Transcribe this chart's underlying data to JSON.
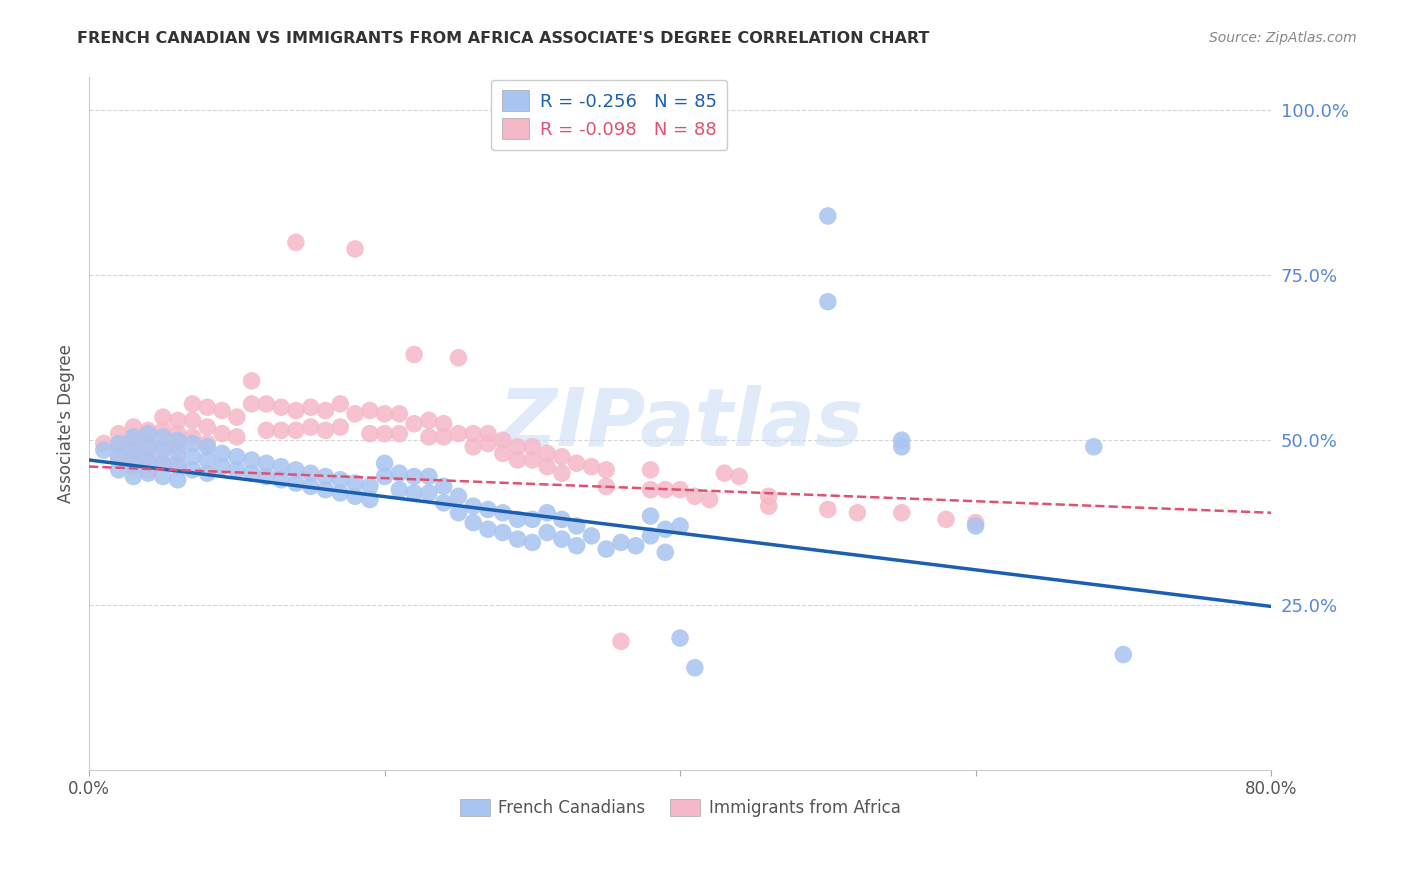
{
  "title": "FRENCH CANADIAN VS IMMIGRANTS FROM AFRICA ASSOCIATE'S DEGREE CORRELATION CHART",
  "source": "Source: ZipAtlas.com",
  "ylabel": "Associate's Degree",
  "right_yticks": [
    "100.0%",
    "75.0%",
    "50.0%",
    "25.0%"
  ],
  "right_ytick_vals": [
    1.0,
    0.75,
    0.5,
    0.25
  ],
  "watermark": "ZIPatlas",
  "legend_blue_R": "-0.256",
  "legend_blue_N": "85",
  "legend_pink_R": "-0.098",
  "legend_pink_N": "88",
  "legend_blue_label": "French Canadians",
  "legend_pink_label": "Immigrants from Africa",
  "blue_color": "#a8c4f0",
  "pink_color": "#f5b8c8",
  "line_blue": "#1a5fb0",
  "line_pink": "#e05070",
  "blue_scatter": [
    [
      0.01,
      0.485
    ],
    [
      0.02,
      0.495
    ],
    [
      0.02,
      0.475
    ],
    [
      0.02,
      0.455
    ],
    [
      0.03,
      0.505
    ],
    [
      0.03,
      0.485
    ],
    [
      0.03,
      0.465
    ],
    [
      0.03,
      0.445
    ],
    [
      0.04,
      0.51
    ],
    [
      0.04,
      0.49
    ],
    [
      0.04,
      0.47
    ],
    [
      0.04,
      0.45
    ],
    [
      0.05,
      0.505
    ],
    [
      0.05,
      0.485
    ],
    [
      0.05,
      0.465
    ],
    [
      0.05,
      0.445
    ],
    [
      0.06,
      0.5
    ],
    [
      0.06,
      0.48
    ],
    [
      0.06,
      0.46
    ],
    [
      0.06,
      0.44
    ],
    [
      0.07,
      0.495
    ],
    [
      0.07,
      0.475
    ],
    [
      0.07,
      0.455
    ],
    [
      0.08,
      0.49
    ],
    [
      0.08,
      0.47
    ],
    [
      0.08,
      0.45
    ],
    [
      0.09,
      0.48
    ],
    [
      0.09,
      0.46
    ],
    [
      0.1,
      0.475
    ],
    [
      0.1,
      0.455
    ],
    [
      0.11,
      0.47
    ],
    [
      0.11,
      0.45
    ],
    [
      0.12,
      0.465
    ],
    [
      0.12,
      0.445
    ],
    [
      0.13,
      0.46
    ],
    [
      0.13,
      0.44
    ],
    [
      0.14,
      0.455
    ],
    [
      0.14,
      0.435
    ],
    [
      0.15,
      0.45
    ],
    [
      0.15,
      0.43
    ],
    [
      0.16,
      0.445
    ],
    [
      0.16,
      0.425
    ],
    [
      0.17,
      0.44
    ],
    [
      0.17,
      0.42
    ],
    [
      0.18,
      0.435
    ],
    [
      0.18,
      0.415
    ],
    [
      0.19,
      0.43
    ],
    [
      0.19,
      0.41
    ],
    [
      0.2,
      0.465
    ],
    [
      0.2,
      0.445
    ],
    [
      0.21,
      0.45
    ],
    [
      0.21,
      0.425
    ],
    [
      0.22,
      0.445
    ],
    [
      0.22,
      0.42
    ],
    [
      0.23,
      0.445
    ],
    [
      0.23,
      0.42
    ],
    [
      0.24,
      0.43
    ],
    [
      0.24,
      0.405
    ],
    [
      0.25,
      0.415
    ],
    [
      0.25,
      0.39
    ],
    [
      0.26,
      0.4
    ],
    [
      0.26,
      0.375
    ],
    [
      0.27,
      0.395
    ],
    [
      0.27,
      0.365
    ],
    [
      0.28,
      0.39
    ],
    [
      0.28,
      0.36
    ],
    [
      0.29,
      0.38
    ],
    [
      0.29,
      0.35
    ],
    [
      0.3,
      0.38
    ],
    [
      0.3,
      0.345
    ],
    [
      0.31,
      0.39
    ],
    [
      0.31,
      0.36
    ],
    [
      0.32,
      0.38
    ],
    [
      0.32,
      0.35
    ],
    [
      0.33,
      0.37
    ],
    [
      0.33,
      0.34
    ],
    [
      0.34,
      0.355
    ],
    [
      0.35,
      0.335
    ],
    [
      0.36,
      0.345
    ],
    [
      0.37,
      0.34
    ],
    [
      0.38,
      0.385
    ],
    [
      0.38,
      0.355
    ],
    [
      0.39,
      0.365
    ],
    [
      0.39,
      0.33
    ],
    [
      0.4,
      0.37
    ],
    [
      0.4,
      0.2
    ],
    [
      0.41,
      0.155
    ],
    [
      0.5,
      0.84
    ],
    [
      0.5,
      0.71
    ],
    [
      0.55,
      0.5
    ],
    [
      0.55,
      0.49
    ],
    [
      0.6,
      0.37
    ],
    [
      0.68,
      0.49
    ],
    [
      0.7,
      0.175
    ]
  ],
  "pink_scatter": [
    [
      0.01,
      0.495
    ],
    [
      0.02,
      0.51
    ],
    [
      0.02,
      0.49
    ],
    [
      0.02,
      0.47
    ],
    [
      0.03,
      0.52
    ],
    [
      0.03,
      0.5
    ],
    [
      0.03,
      0.48
    ],
    [
      0.03,
      0.46
    ],
    [
      0.04,
      0.515
    ],
    [
      0.04,
      0.495
    ],
    [
      0.04,
      0.475
    ],
    [
      0.04,
      0.455
    ],
    [
      0.05,
      0.535
    ],
    [
      0.05,
      0.515
    ],
    [
      0.05,
      0.49
    ],
    [
      0.05,
      0.465
    ],
    [
      0.06,
      0.53
    ],
    [
      0.06,
      0.51
    ],
    [
      0.06,
      0.49
    ],
    [
      0.06,
      0.465
    ],
    [
      0.07,
      0.555
    ],
    [
      0.07,
      0.53
    ],
    [
      0.07,
      0.505
    ],
    [
      0.08,
      0.55
    ],
    [
      0.08,
      0.52
    ],
    [
      0.08,
      0.495
    ],
    [
      0.09,
      0.545
    ],
    [
      0.09,
      0.51
    ],
    [
      0.1,
      0.535
    ],
    [
      0.1,
      0.505
    ],
    [
      0.11,
      0.59
    ],
    [
      0.11,
      0.555
    ],
    [
      0.12,
      0.555
    ],
    [
      0.12,
      0.515
    ],
    [
      0.13,
      0.55
    ],
    [
      0.13,
      0.515
    ],
    [
      0.14,
      0.8
    ],
    [
      0.14,
      0.545
    ],
    [
      0.14,
      0.515
    ],
    [
      0.15,
      0.55
    ],
    [
      0.15,
      0.52
    ],
    [
      0.16,
      0.545
    ],
    [
      0.16,
      0.515
    ],
    [
      0.17,
      0.555
    ],
    [
      0.17,
      0.52
    ],
    [
      0.18,
      0.79
    ],
    [
      0.18,
      0.54
    ],
    [
      0.19,
      0.545
    ],
    [
      0.19,
      0.51
    ],
    [
      0.2,
      0.54
    ],
    [
      0.2,
      0.51
    ],
    [
      0.21,
      0.54
    ],
    [
      0.21,
      0.51
    ],
    [
      0.22,
      0.63
    ],
    [
      0.22,
      0.525
    ],
    [
      0.23,
      0.53
    ],
    [
      0.23,
      0.505
    ],
    [
      0.24,
      0.525
    ],
    [
      0.24,
      0.505
    ],
    [
      0.25,
      0.625
    ],
    [
      0.25,
      0.51
    ],
    [
      0.26,
      0.51
    ],
    [
      0.26,
      0.49
    ],
    [
      0.27,
      0.51
    ],
    [
      0.27,
      0.495
    ],
    [
      0.28,
      0.5
    ],
    [
      0.28,
      0.48
    ],
    [
      0.29,
      0.49
    ],
    [
      0.29,
      0.47
    ],
    [
      0.3,
      0.49
    ],
    [
      0.3,
      0.47
    ],
    [
      0.31,
      0.48
    ],
    [
      0.31,
      0.46
    ],
    [
      0.32,
      0.475
    ],
    [
      0.32,
      0.45
    ],
    [
      0.33,
      0.465
    ],
    [
      0.34,
      0.46
    ],
    [
      0.35,
      0.455
    ],
    [
      0.35,
      0.43
    ],
    [
      0.36,
      0.195
    ],
    [
      0.38,
      0.455
    ],
    [
      0.38,
      0.425
    ],
    [
      0.39,
      0.425
    ],
    [
      0.4,
      0.425
    ],
    [
      0.41,
      0.415
    ],
    [
      0.42,
      0.41
    ],
    [
      0.43,
      0.45
    ],
    [
      0.44,
      0.445
    ],
    [
      0.46,
      0.415
    ],
    [
      0.46,
      0.4
    ],
    [
      0.5,
      0.395
    ],
    [
      0.52,
      0.39
    ],
    [
      0.55,
      0.39
    ],
    [
      0.58,
      0.38
    ],
    [
      0.6,
      0.375
    ]
  ],
  "xlim": [
    0.0,
    0.8
  ],
  "ylim": [
    0.0,
    1.05
  ],
  "blue_line_x": [
    0.0,
    0.8
  ],
  "blue_line_y": [
    0.47,
    0.248
  ],
  "pink_line_x": [
    0.0,
    0.8
  ],
  "pink_line_y": [
    0.46,
    0.39
  ],
  "bg_color": "#ffffff",
  "grid_color": "#cccccc",
  "title_color": "#333333",
  "right_axis_color": "#5588dd"
}
